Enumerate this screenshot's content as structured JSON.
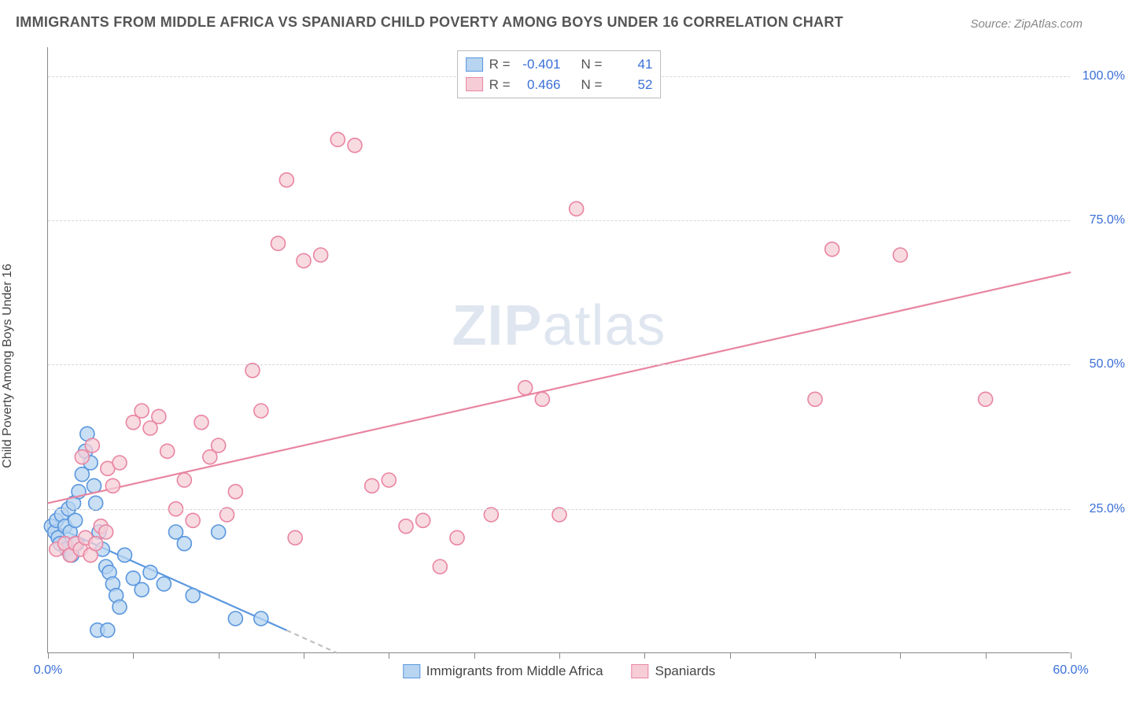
{
  "header": {
    "title": "IMMIGRANTS FROM MIDDLE AFRICA VS SPANIARD CHILD POVERTY AMONG BOYS UNDER 16 CORRELATION CHART",
    "source": "Source: ZipAtlas.com"
  },
  "watermark": {
    "zip": "ZIP",
    "atlas": "atlas"
  },
  "chart": {
    "type": "scatter",
    "ylabel": "Child Poverty Among Boys Under 16",
    "xlim": [
      0,
      60
    ],
    "ylim": [
      0,
      105
    ],
    "x_ticks": [
      0,
      5,
      10,
      15,
      20,
      25,
      30,
      35,
      40,
      45,
      50,
      55,
      60
    ],
    "x_tick_labels": {
      "0": "0.0%",
      "60": "60.0%"
    },
    "y_gridlines": [
      25,
      50,
      75,
      100
    ],
    "y_tick_labels": {
      "25": "25.0%",
      "50": "50.0%",
      "75": "75.0%",
      "100": "100.0%"
    },
    "grid_color": "#d5d5d5",
    "axis_color": "#888888",
    "label_color": "#3a6fd8",
    "background_color": "#ffffff",
    "marker_radius": 9,
    "marker_stroke_width": 1.6,
    "line_width": 2.2,
    "series": [
      {
        "key": "immigrants",
        "label": "Immigrants from Middle Africa",
        "fill": "#b7d4f0",
        "stroke": "#5a97de",
        "R": "-0.401",
        "N": "41",
        "trend": {
          "x1": 0,
          "y1": 22.5,
          "x2": 17,
          "y2": 0,
          "dash_after_x": 14
        },
        "points": [
          [
            0.2,
            22
          ],
          [
            0.4,
            21
          ],
          [
            0.5,
            23
          ],
          [
            0.6,
            20
          ],
          [
            0.8,
            24
          ],
          [
            0.7,
            19
          ],
          [
            1.0,
            22
          ],
          [
            1.1,
            18
          ],
          [
            1.2,
            25
          ],
          [
            1.3,
            21
          ],
          [
            1.4,
            17
          ],
          [
            1.5,
            26
          ],
          [
            1.6,
            23
          ],
          [
            1.7,
            19
          ],
          [
            1.8,
            28
          ],
          [
            2.0,
            31
          ],
          [
            2.2,
            35
          ],
          [
            2.3,
            38
          ],
          [
            2.5,
            33
          ],
          [
            2.7,
            29
          ],
          [
            2.8,
            26
          ],
          [
            3.0,
            21
          ],
          [
            3.2,
            18
          ],
          [
            3.4,
            15
          ],
          [
            3.6,
            14
          ],
          [
            3.8,
            12
          ],
          [
            4.0,
            10
          ],
          [
            4.2,
            8
          ],
          [
            2.9,
            4
          ],
          [
            3.5,
            4
          ],
          [
            5.0,
            13
          ],
          [
            5.5,
            11
          ],
          [
            6.0,
            14
          ],
          [
            6.8,
            12
          ],
          [
            7.5,
            21
          ],
          [
            8.0,
            19
          ],
          [
            8.5,
            10
          ],
          [
            10.0,
            21
          ],
          [
            11.0,
            6
          ],
          [
            12.5,
            6
          ],
          [
            4.5,
            17
          ]
        ]
      },
      {
        "key": "spaniards",
        "label": "Spaniards",
        "fill": "#f6cdd7",
        "stroke": "#e985a2",
        "R": "0.466",
        "N": "52",
        "trend": {
          "x1": 0,
          "y1": 26,
          "x2": 60,
          "y2": 66
        },
        "points": [
          [
            0.5,
            18
          ],
          [
            1.0,
            19
          ],
          [
            1.3,
            17
          ],
          [
            1.6,
            19
          ],
          [
            1.9,
            18
          ],
          [
            2.2,
            20
          ],
          [
            2.5,
            17
          ],
          [
            2.8,
            19
          ],
          [
            3.1,
            22
          ],
          [
            3.4,
            21
          ],
          [
            2.0,
            34
          ],
          [
            2.6,
            36
          ],
          [
            3.5,
            32
          ],
          [
            3.8,
            29
          ],
          [
            4.2,
            33
          ],
          [
            5.0,
            40
          ],
          [
            5.5,
            42
          ],
          [
            6.0,
            39
          ],
          [
            6.5,
            41
          ],
          [
            7.0,
            35
          ],
          [
            7.5,
            25
          ],
          [
            8.0,
            30
          ],
          [
            8.5,
            23
          ],
          [
            9.0,
            40
          ],
          [
            9.5,
            34
          ],
          [
            10.0,
            36
          ],
          [
            10.5,
            24
          ],
          [
            11.0,
            28
          ],
          [
            12.0,
            49
          ],
          [
            13.5,
            71
          ],
          [
            14.0,
            82
          ],
          [
            15.0,
            68
          ],
          [
            16.0,
            69
          ],
          [
            17.0,
            89
          ],
          [
            18.0,
            88
          ],
          [
            19.0,
            29
          ],
          [
            20.0,
            30
          ],
          [
            21.0,
            22
          ],
          [
            22.0,
            23
          ],
          [
            23.0,
            15
          ],
          [
            24.0,
            20
          ],
          [
            26.0,
            24
          ],
          [
            28.0,
            46
          ],
          [
            29.0,
            44
          ],
          [
            30.0,
            24
          ],
          [
            31.0,
            77
          ],
          [
            45.0,
            44
          ],
          [
            46.0,
            70
          ],
          [
            50.0,
            69
          ],
          [
            55.0,
            44
          ],
          [
            12.5,
            42
          ],
          [
            14.5,
            20
          ]
        ]
      }
    ],
    "legend_top": {
      "r_label": "R =",
      "n_label": "N ="
    }
  }
}
